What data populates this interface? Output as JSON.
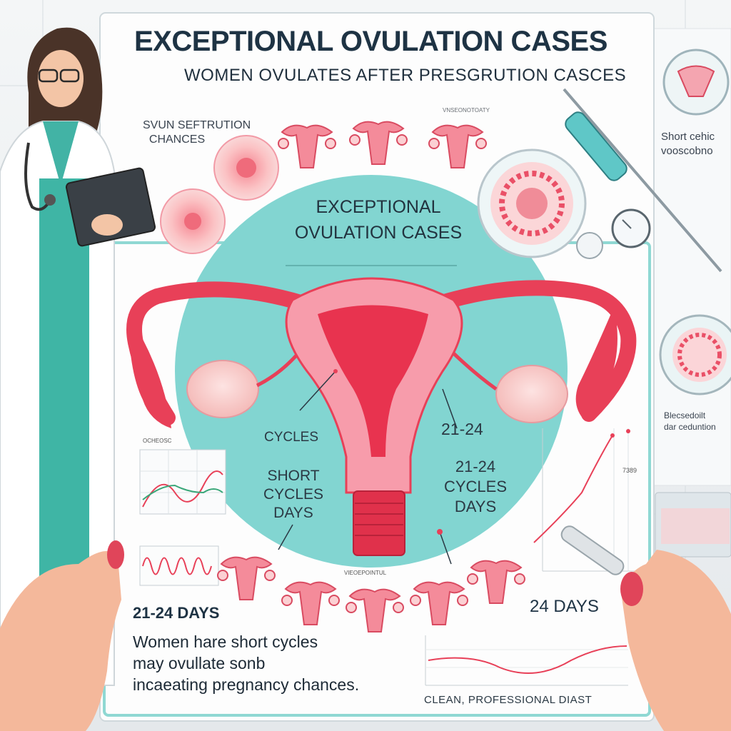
{
  "title": "EXCEPTIONAL OVULATION CASES",
  "subtitle": "WOMEN OVULATES AFTER PRESGRUTION CASCES",
  "top_left_note": "SVUN SEFTRUTION\n  CHANCES",
  "top_center_note": "VNSEONOTOATY",
  "circle_title": "EXCEPTIONAL OVULATION CASES",
  "cycles_left_top": "CYCLES",
  "cycles_left_bottom": "SHORT CYCLES DAYS",
  "range_top": "21-24",
  "range_block": "21-24 CYCLES DAYS",
  "days_left": "21-24 DAYS",
  "days_right": "24 DAYS",
  "bottom_text": "Women hare short cycles\nmay ovullate sonb\nincaeating pregnancy chances.",
  "footer_text": "CLEAN, PROFESSIONAL DIAST",
  "right_note_top": "Short cehic\nvooscobno",
  "right_note_bottom": "Blecsedoilt\ndar ceduntion",
  "chart_left_label": "OCHEOSC",
  "chart_right_label": "7389",
  "bottom_center_label": "VIEOEPOINTUL",
  "colors": {
    "teal": "#7fd6d2",
    "uterus": "#e8405a",
    "uterus_light": "#f7a9b4",
    "title": "#1e3344",
    "coat": "#ffffff",
    "scrubs": "#3fb5a5"
  }
}
